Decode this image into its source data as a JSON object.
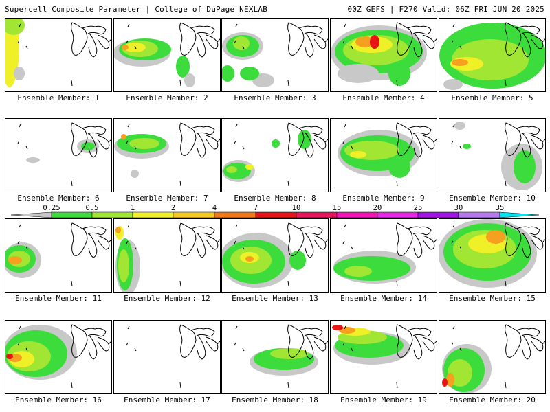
{
  "header": {
    "left_title": "Supercell Composite Parameter | College of DuPage NEXLAB",
    "right_title": "00Z GEFS | F270 Valid: 06Z FRI JUN 20 2025"
  },
  "members": [
    "Ensemble Member: 1",
    "Ensemble Member: 2",
    "Ensemble Member: 3",
    "Ensemble Member: 4",
    "Ensemble Member: 5",
    "Ensemble Member: 6",
    "Ensemble Member: 7",
    "Ensemble Member: 8",
    "Ensemble Member: 9",
    "Ensemble Member: 10",
    "Ensemble Member: 11",
    "Ensemble Member: 12",
    "Ensemble Member: 13",
    "Ensemble Member: 14",
    "Ensemble Member: 15",
    "Ensemble Member: 16",
    "Ensemble Member: 17",
    "Ensemble Member: 18",
    "Ensemble Member: 19",
    "Ensemble Member: 20"
  ],
  "legend": {
    "labels": [
      "0.25",
      "0.5",
      "1",
      "2",
      "4",
      "7",
      "10",
      "15",
      "20",
      "25",
      "30",
      "35"
    ],
    "colors": [
      "#c8c8c8",
      "#3cdc3c",
      "#a0e632",
      "#f0f028",
      "#f5c81e",
      "#f07814",
      "#e61414",
      "#e6145a",
      "#f014b4",
      "#e628e6",
      "#a014e6",
      "#b478f0",
      "#00e6f0"
    ]
  },
  "field_colors": {
    "gray": "#c8c8c8",
    "green": "#3cdc3c",
    "lime": "#a0e632",
    "yellow": "#f0f028",
    "orange": "#f5a01e",
    "red": "#e61414",
    "coastline": "#000000"
  }
}
